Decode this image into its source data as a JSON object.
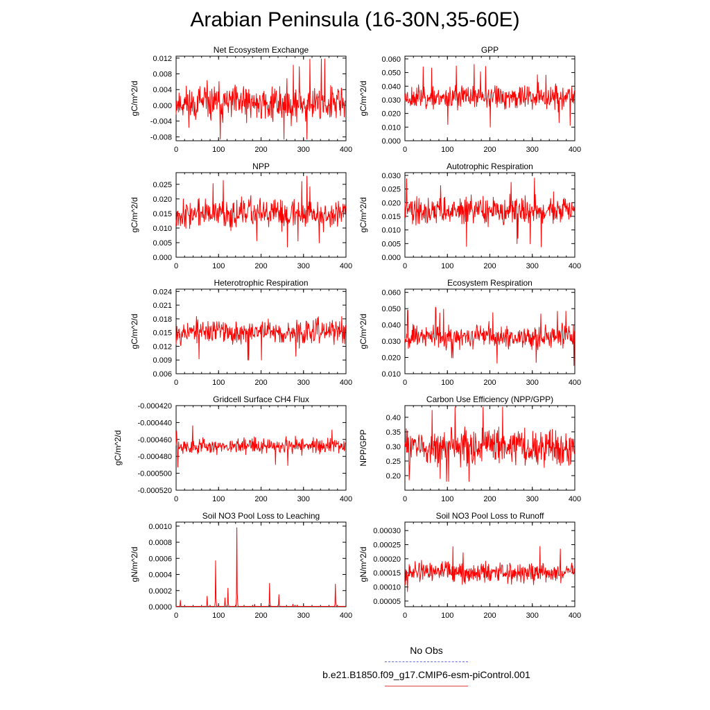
{
  "figure": {
    "title": "Arabian Peninsula (16-30N,35-60E)",
    "line_color": "#ff0000",
    "legend": [
      {
        "label": "No Obs",
        "color": "#6a6adf",
        "style": "dashed"
      },
      {
        "label": "b.e21.B1850.f09_g17.CMIP6-esm-piControl.001",
        "color": "#e24444",
        "style": "solid"
      }
    ]
  },
  "chart_data": [
    {
      "type": "line",
      "title": "Net Ecosystem Exchange",
      "ylabel": "gC/m^2/d",
      "xlim": [
        0,
        400
      ],
      "xticks": [
        0,
        100,
        200,
        300,
        400
      ],
      "xtick_labels": [
        "0",
        "100",
        "200",
        "300",
        "400"
      ],
      "ylim": [
        -0.009,
        0.0125
      ],
      "yticks": [
        -0.008,
        -0.004,
        0.0,
        0.004,
        0.008,
        0.012
      ],
      "ytick_labels": [
        "-0.008",
        "-0.004",
        "0.000",
        "0.004",
        "0.008",
        "0.012"
      ],
      "series": [
        {
          "name": "b.e21.B1850.f09_g17.CMIP6-esm-piControl.001",
          "gen": {
            "n": 400,
            "mean": 0.0005,
            "amp": 0.0042,
            "seed": 11,
            "min": -0.0086,
            "max": 0.0118
          }
        }
      ]
    },
    {
      "type": "line",
      "title": "GPP",
      "ylabel": "gC/m^2/d",
      "xlim": [
        0,
        400
      ],
      "xticks": [
        0,
        100,
        200,
        300,
        400
      ],
      "xtick_labels": [
        "0",
        "100",
        "200",
        "300",
        "400"
      ],
      "ylim": [
        0.0,
        0.062
      ],
      "yticks": [
        0.0,
        0.01,
        0.02,
        0.03,
        0.04,
        0.05,
        0.06
      ],
      "ytick_labels": [
        "0.000",
        "0.010",
        "0.020",
        "0.030",
        "0.040",
        "0.050",
        "0.060"
      ],
      "series": [
        {
          "name": "b.e21.B1850.f09_g17.CMIP6-esm-piControl.001",
          "gen": {
            "n": 400,
            "mean": 0.032,
            "amp": 0.008,
            "seed": 23,
            "min": 0.004,
            "max": 0.057
          }
        }
      ]
    },
    {
      "type": "line",
      "title": "NPP",
      "ylabel": "gC/m^2/d",
      "xlim": [
        0,
        400
      ],
      "xticks": [
        0,
        100,
        200,
        300,
        400
      ],
      "xtick_labels": [
        "0",
        "100",
        "200",
        "300",
        "400"
      ],
      "ylim": [
        0.0,
        0.029
      ],
      "yticks": [
        0.0,
        0.005,
        0.01,
        0.015,
        0.02,
        0.025
      ],
      "ytick_labels": [
        "0.000",
        "0.005",
        "0.010",
        "0.015",
        "0.020",
        "0.025"
      ],
      "series": [
        {
          "name": "b.e21.B1850.f09_g17.CMIP6-esm-piControl.001",
          "gen": {
            "n": 400,
            "mean": 0.015,
            "amp": 0.0045,
            "seed": 37,
            "min": 0.001,
            "max": 0.028
          }
        }
      ]
    },
    {
      "type": "line",
      "title": "Autotrophic Respiration",
      "ylabel": "gC/m^2/d",
      "xlim": [
        0,
        400
      ],
      "xticks": [
        0,
        100,
        200,
        300,
        400
      ],
      "xtick_labels": [
        "0",
        "100",
        "200",
        "300",
        "400"
      ],
      "ylim": [
        0.0,
        0.031
      ],
      "yticks": [
        0.0,
        0.005,
        0.01,
        0.015,
        0.02,
        0.025,
        0.03
      ],
      "ytick_labels": [
        "0.000",
        "0.005",
        "0.010",
        "0.015",
        "0.020",
        "0.025",
        "0.030"
      ],
      "series": [
        {
          "name": "b.e21.B1850.f09_g17.CMIP6-esm-piControl.001",
          "gen": {
            "n": 400,
            "mean": 0.017,
            "amp": 0.0045,
            "seed": 41,
            "min": 0.002,
            "max": 0.029
          }
        }
      ]
    },
    {
      "type": "line",
      "title": "Heterotrophic Respiration",
      "ylabel": "gC/m^2/d",
      "xlim": [
        0,
        400
      ],
      "xticks": [
        0,
        100,
        200,
        300,
        400
      ],
      "xtick_labels": [
        "0",
        "100",
        "200",
        "300",
        "400"
      ],
      "ylim": [
        0.006,
        0.0245
      ],
      "yticks": [
        0.006,
        0.009,
        0.012,
        0.015,
        0.018,
        0.021,
        0.024
      ],
      "ytick_labels": [
        "0.006",
        "0.009",
        "0.012",
        "0.015",
        "0.018",
        "0.021",
        "0.024"
      ],
      "series": [
        {
          "name": "b.e21.B1850.f09_g17.CMIP6-esm-piControl.001",
          "gen": {
            "n": 400,
            "mean": 0.0152,
            "amp": 0.0025,
            "seed": 53,
            "min": 0.009,
            "max": 0.0235
          }
        }
      ]
    },
    {
      "type": "line",
      "title": "Ecosystem Respiration",
      "ylabel": "gC/m^2/d",
      "xlim": [
        0,
        400
      ],
      "xticks": [
        0,
        100,
        200,
        300,
        400
      ],
      "xtick_labels": [
        "0",
        "100",
        "200",
        "300",
        "400"
      ],
      "ylim": [
        0.01,
        0.062
      ],
      "yticks": [
        0.01,
        0.02,
        0.03,
        0.04,
        0.05,
        0.06
      ],
      "ytick_labels": [
        "0.010",
        "0.020",
        "0.030",
        "0.040",
        "0.050",
        "0.060"
      ],
      "series": [
        {
          "name": "b.e21.B1850.f09_g17.CMIP6-esm-piControl.001",
          "gen": {
            "n": 400,
            "mean": 0.033,
            "amp": 0.0065,
            "seed": 67,
            "min": 0.012,
            "max": 0.051
          }
        }
      ]
    },
    {
      "type": "line",
      "title": "Gridcell Surface CH4 Flux",
      "ylabel": "gC/m^2/d",
      "xlim": [
        0,
        400
      ],
      "xticks": [
        0,
        100,
        200,
        300,
        400
      ],
      "xtick_labels": [
        "0",
        "100",
        "200",
        "300",
        "400"
      ],
      "ylim": [
        -0.00052,
        -0.00042
      ],
      "yticks": [
        -0.00052,
        -0.0005,
        -0.00048,
        -0.00046,
        -0.00044,
        -0.00042
      ],
      "ytick_labels": [
        "-0.000520",
        "-0.000500",
        "-0.000480",
        "-0.000460",
        "-0.000440",
        "-0.000420"
      ],
      "series": [
        {
          "name": "b.e21.B1850.f09_g17.CMIP6-esm-piControl.001",
          "gen": {
            "n": 400,
            "mean": -0.000468,
            "amp": 8.5e-06,
            "seed": 79,
            "min": -0.000503,
            "max": -0.000431
          }
        }
      ]
    },
    {
      "type": "line",
      "title": "Carbon Use Efficiency (NPP/GPP)",
      "ylabel": "NPP/GPP",
      "xlim": [
        0,
        400
      ],
      "xticks": [
        0,
        100,
        200,
        300,
        400
      ],
      "xtick_labels": [
        "0",
        "100",
        "200",
        "300",
        "400"
      ],
      "ylim": [
        0.15,
        0.44
      ],
      "yticks": [
        0.2,
        0.25,
        0.3,
        0.35,
        0.4
      ],
      "ytick_labels": [
        "0.20",
        "0.25",
        "0.30",
        "0.35",
        "0.40"
      ],
      "series": [
        {
          "name": "b.e21.B1850.f09_g17.CMIP6-esm-piControl.001",
          "gen": {
            "n": 400,
            "mean": 0.3,
            "amp": 0.055,
            "seed": 83,
            "min": 0.18,
            "max": 0.435
          }
        }
      ]
    },
    {
      "type": "line",
      "title": "Soil NO3 Pool Loss to Leaching",
      "ylabel": "gN/m^2/d",
      "xlim": [
        0,
        400
      ],
      "xticks": [
        0,
        100,
        200,
        300,
        400
      ],
      "xtick_labels": [
        "0",
        "100",
        "200",
        "300",
        "400"
      ],
      "ylim": [
        0.0,
        0.00105
      ],
      "yticks": [
        0.0,
        0.0002,
        0.0004,
        0.0006,
        0.0008,
        0.001
      ],
      "ytick_labels": [
        "0.0000",
        "0.0002",
        "0.0004",
        "0.0006",
        "0.0008",
        "0.0010"
      ],
      "series": [
        {
          "name": "b.e21.B1850.f09_g17.CMIP6-esm-piControl.001",
          "base": 4e-06,
          "spikes": [
            [
              10,
              8e-05
            ],
            [
              73,
              0.00013
            ],
            [
              93,
              0.00057
            ],
            [
              115,
              0.00011
            ],
            [
              122,
              0.00023
            ],
            [
              143,
              0.00098
            ],
            [
              185,
              3e-05
            ],
            [
              220,
              0.00029
            ],
            [
              242,
              0.00015
            ],
            [
              275,
              3e-05
            ],
            [
              285,
              2e-05
            ],
            [
              375,
              0.00028
            ]
          ]
        }
      ]
    },
    {
      "type": "line",
      "title": "Soil NO3 Pool Loss to Runoff",
      "ylabel": "gN/m^2/d",
      "xlim": [
        0,
        400
      ],
      "xticks": [
        0,
        100,
        200,
        300,
        400
      ],
      "xtick_labels": [
        "0",
        "100",
        "200",
        "300",
        "400"
      ],
      "ylim": [
        3e-05,
        0.00033
      ],
      "yticks": [
        5e-05,
        0.0001,
        0.00015,
        0.0002,
        0.00025,
        0.0003
      ],
      "ytick_labels": [
        "0.00005",
        "0.00010",
        "0.00015",
        "0.00020",
        "0.00025",
        "0.00030"
      ],
      "series": [
        {
          "name": "b.e21.B1850.f09_g17.CMIP6-esm-piControl.001",
          "gen": {
            "n": 400,
            "mean": 0.00015,
            "amp": 3.3e-05,
            "seed": 97,
            "min": 5.5e-05,
            "max": 0.000285
          }
        }
      ]
    }
  ]
}
